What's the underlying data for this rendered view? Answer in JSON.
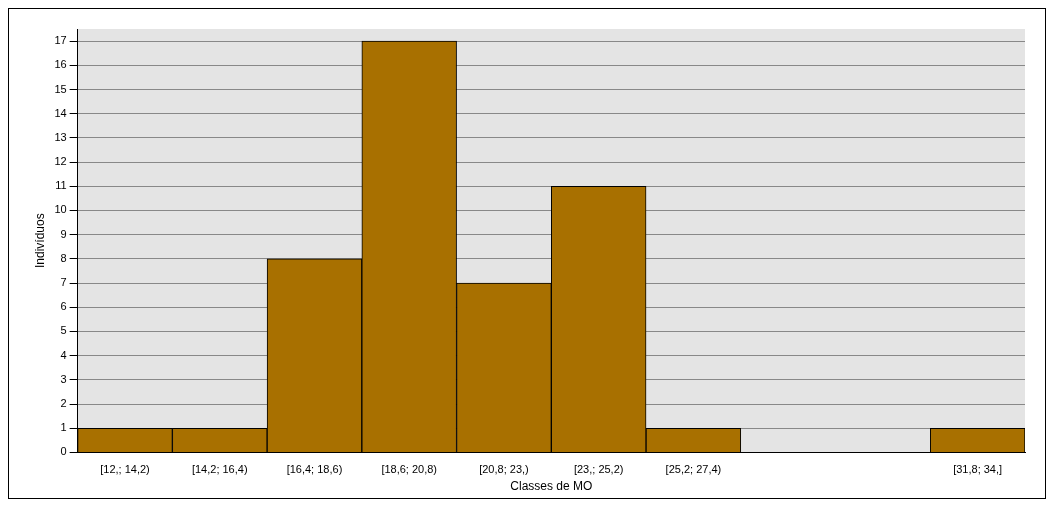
{
  "chart_data": {
    "type": "bar",
    "xlabel": "Classes de MO",
    "ylabel": "Indivíduos",
    "categories": [
      "[12,; 14,2)",
      "[14,2; 16,4)",
      "[16,4; 18,6)",
      "[18,6; 20,8)",
      "[20,8; 23,)",
      "[23,; 25,2)",
      "[25,2; 27,4)",
      null,
      null,
      "[31,8; 34,]"
    ],
    "values": [
      1,
      1,
      8,
      17,
      7,
      11,
      1,
      0,
      0,
      1
    ],
    "color": "#a87000",
    "ylim": [
      0,
      17.5
    ],
    "yticks": [
      0,
      1,
      2,
      3,
      4,
      5,
      6,
      7,
      8,
      9,
      10,
      11,
      12,
      13,
      14,
      15,
      16,
      17
    ],
    "grid": "y",
    "legend": false
  }
}
